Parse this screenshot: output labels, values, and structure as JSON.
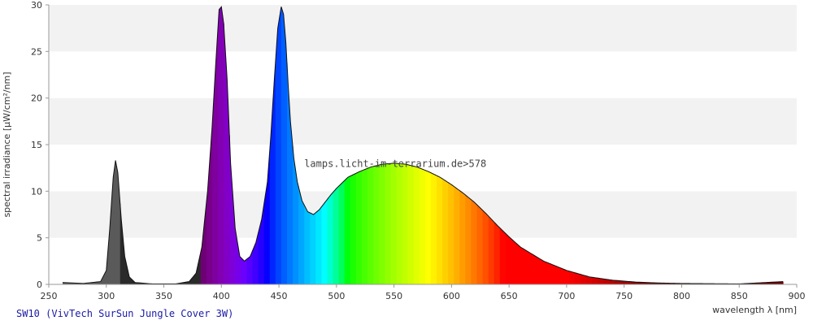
{
  "chart_data": {
    "type": "area",
    "xlabel": "wavelength λ [nm]",
    "ylabel": "spectral irradiance [µW/cm²/nm]",
    "xlim": [
      250,
      900
    ],
    "ylim": [
      0,
      30
    ],
    "x_ticks": [
      250,
      300,
      350,
      400,
      450,
      500,
      550,
      600,
      650,
      700,
      750,
      800,
      850,
      900
    ],
    "y_ticks": [
      0,
      5,
      10,
      15,
      20,
      25,
      30
    ],
    "grid": "alternating horizontal bands",
    "fill": "visible-spectrum colors by wavelength; grey in UV",
    "caption": "SW10 (VivTech SurSun Jungle Cover 3W)",
    "watermark": "lamps.licht-im-terrarium.de>578",
    "colors": {
      "caption": "#1a1aa6",
      "band": "#f2f2f2",
      "axis": "#999999",
      "watermark": "#444444"
    },
    "series": [
      {
        "x": [
          262,
          280,
          295,
          300,
          303,
          306,
          308,
          310,
          313,
          316,
          320,
          325,
          340,
          360,
          372,
          378,
          383,
          388,
          392,
          395,
          397,
          398,
          400,
          402,
          405,
          408,
          412,
          416,
          420,
          425,
          430,
          435,
          440,
          443,
          446,
          449,
          452,
          454,
          456,
          458,
          460,
          463,
          466,
          470,
          475,
          480,
          485,
          490,
          495,
          500,
          505,
          510,
          520,
          530,
          540,
          550,
          560,
          570,
          580,
          590,
          600,
          610,
          620,
          630,
          640,
          650,
          660,
          680,
          700,
          720,
          740,
          760,
          780,
          800,
          850,
          888
        ],
        "y": [
          0.2,
          0.1,
          0.3,
          1.5,
          6.0,
          11.5,
          13.3,
          12.0,
          7.0,
          3.0,
          0.8,
          0.2,
          0.05,
          0.05,
          0.3,
          1.2,
          4.0,
          10.0,
          17.0,
          23.5,
          27.5,
          29.5,
          29.8,
          28.0,
          22.0,
          13.0,
          6.0,
          3.0,
          2.5,
          3.0,
          4.5,
          7.0,
          11.0,
          16.0,
          22.0,
          27.5,
          29.8,
          29.0,
          26.0,
          21.5,
          17.5,
          13.5,
          11.0,
          9.0,
          7.8,
          7.5,
          8.0,
          8.8,
          9.6,
          10.3,
          10.9,
          11.5,
          12.1,
          12.6,
          12.9,
          13.0,
          12.9,
          12.6,
          12.1,
          11.5,
          10.7,
          9.8,
          8.8,
          7.6,
          6.3,
          5.1,
          4.0,
          2.5,
          1.5,
          0.8,
          0.45,
          0.25,
          0.15,
          0.1,
          0.05,
          0.3
        ]
      }
    ]
  }
}
